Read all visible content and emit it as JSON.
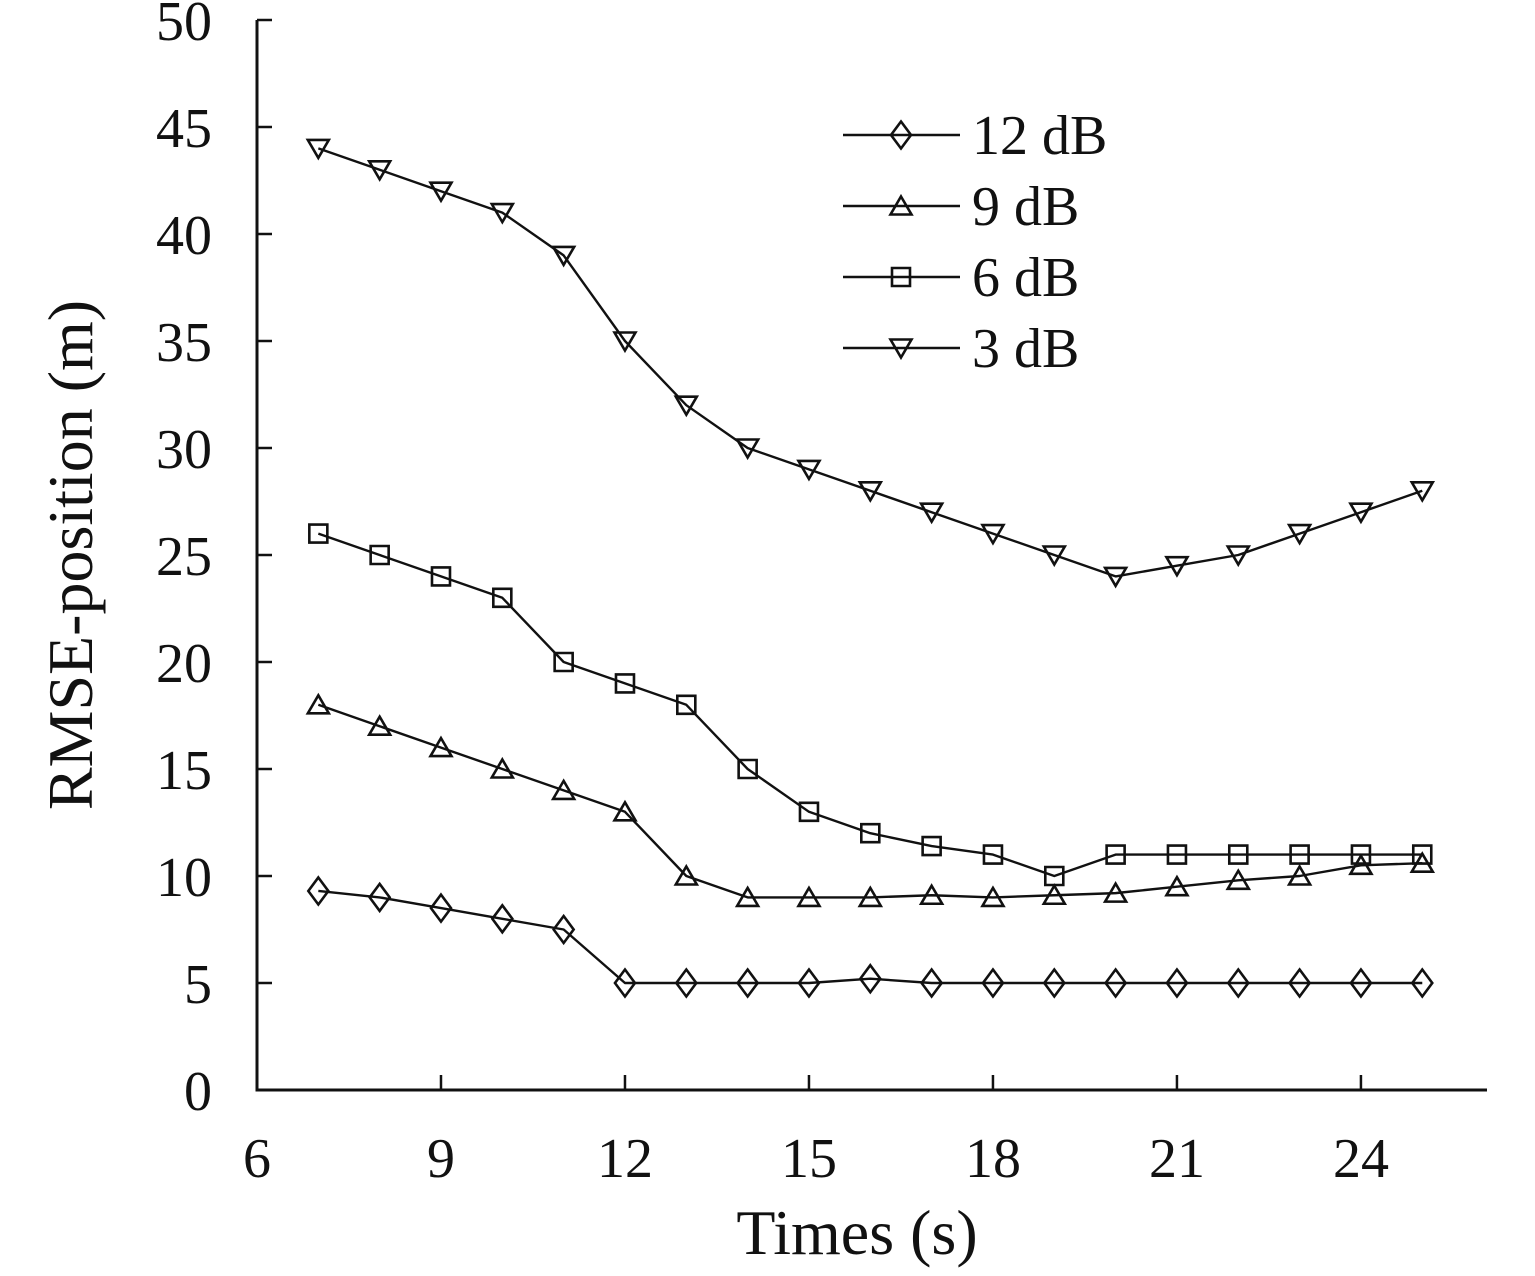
{
  "chart_data": {
    "type": "line",
    "title": "",
    "xlabel": "Times (s)",
    "ylabel": "RMSE-position (m)",
    "xlim": [
      6,
      26.05
    ],
    "ylim": [
      0,
      50
    ],
    "xticks": [
      6,
      9,
      12,
      15,
      18,
      21,
      24
    ],
    "yticks": [
      0,
      5,
      10,
      15,
      20,
      25,
      30,
      35,
      40,
      45,
      50
    ],
    "grid": false,
    "legend_position": "upper-right-inside",
    "x": [
      7,
      8,
      9,
      10,
      11,
      12,
      13,
      14,
      15,
      16,
      17,
      18,
      19,
      20,
      21,
      22,
      23,
      24,
      25
    ],
    "series": [
      {
        "name": "12 dB",
        "marker": "diamond",
        "values": [
          9.3,
          9.0,
          8.5,
          8.0,
          7.5,
          5.0,
          5.0,
          5.0,
          5.0,
          5.2,
          5.0,
          5.0,
          5.0,
          5.0,
          5.0,
          5.0,
          5.0,
          5.0,
          5.0
        ]
      },
      {
        "name": "9 dB",
        "marker": "triangle-up",
        "values": [
          18,
          17,
          16,
          15,
          14,
          13,
          10,
          9.0,
          9.0,
          9.0,
          9.1,
          9.0,
          9.1,
          9.2,
          9.5,
          9.8,
          10.0,
          10.5,
          10.6
        ]
      },
      {
        "name": "6 dB",
        "marker": "square",
        "values": [
          26,
          25,
          24,
          23,
          20,
          19,
          18,
          15,
          13,
          12,
          11.4,
          11,
          10,
          11,
          11,
          11,
          11,
          11,
          11
        ]
      },
      {
        "name": "3 dB",
        "marker": "triangle-down",
        "values": [
          44,
          43,
          42,
          41,
          39,
          35,
          32,
          30,
          29,
          28,
          27,
          26,
          25,
          24,
          24.5,
          25,
          26,
          27,
          28
        ]
      }
    ]
  },
  "style": {
    "line_color": "#111111",
    "background": "#ffffff"
  }
}
